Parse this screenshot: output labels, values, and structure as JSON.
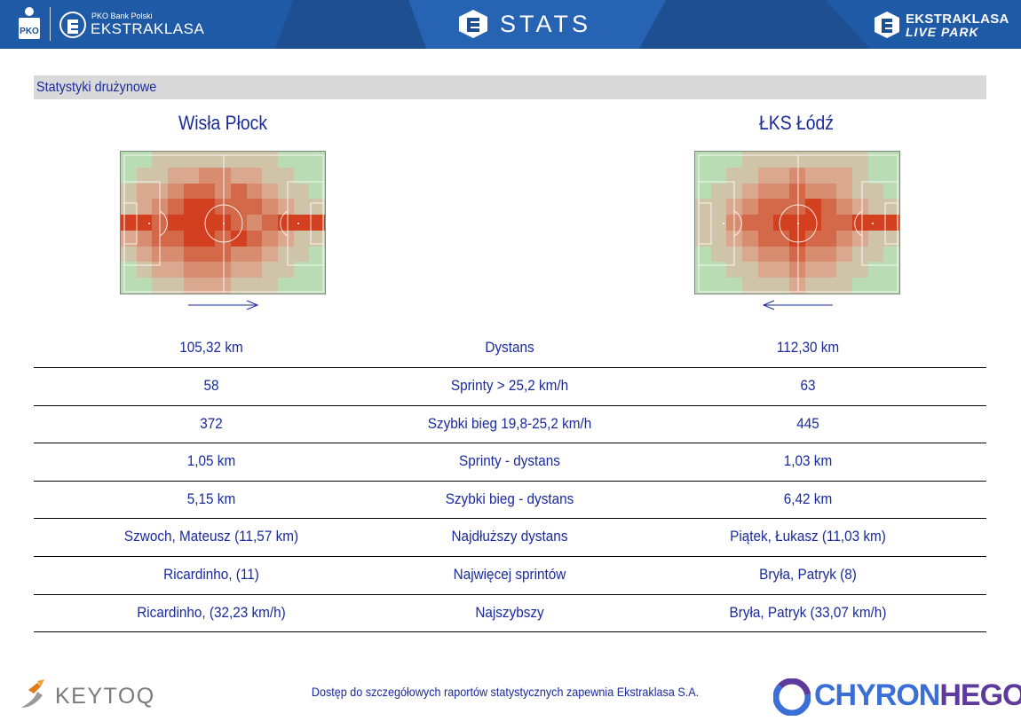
{
  "header": {
    "league_small": "PKO Bank Polski",
    "league_name": "EKSTRAKLASA",
    "stats_title": "STATS",
    "live_line1": "EKSTRAKLASA",
    "live_line2": "LIVE PARK",
    "pko_logo_text": "PKO"
  },
  "section_title": "Statystyki drużynowe",
  "teams": {
    "home": "Wisła Płock",
    "away": "ŁKS Łódź"
  },
  "heatmaps": {
    "home": {
      "attack_direction": "right",
      "grid": [
        [
          0,
          0,
          1,
          1,
          1,
          1,
          1,
          1,
          1,
          1,
          0,
          0,
          0
        ],
        [
          0,
          1,
          1,
          2,
          2,
          3,
          3,
          2,
          2,
          1,
          1,
          0,
          0
        ],
        [
          1,
          2,
          2,
          3,
          4,
          4,
          3,
          4,
          3,
          2,
          1,
          1,
          0
        ],
        [
          1,
          2,
          3,
          4,
          5,
          5,
          4,
          4,
          4,
          3,
          2,
          1,
          1
        ],
        [
          5,
          5,
          4,
          5,
          5,
          5,
          5,
          4,
          3,
          4,
          5,
          5,
          5
        ],
        [
          2,
          3,
          4,
          4,
          5,
          5,
          4,
          5,
          4,
          3,
          2,
          1,
          1
        ],
        [
          1,
          2,
          3,
          3,
          4,
          4,
          4,
          3,
          3,
          2,
          1,
          1,
          0
        ],
        [
          0,
          1,
          2,
          2,
          3,
          3,
          3,
          2,
          2,
          1,
          1,
          0,
          0
        ],
        [
          0,
          0,
          1,
          1,
          2,
          2,
          2,
          1,
          1,
          1,
          0,
          0,
          0
        ]
      ],
      "hotspot_bottom_col": 8
    },
    "away": {
      "attack_direction": "left",
      "grid": [
        [
          0,
          0,
          0,
          1,
          1,
          1,
          1,
          1,
          1,
          1,
          1,
          0,
          0
        ],
        [
          0,
          0,
          1,
          1,
          2,
          2,
          3,
          2,
          2,
          2,
          1,
          0,
          0
        ],
        [
          0,
          1,
          1,
          2,
          3,
          3,
          4,
          3,
          3,
          2,
          1,
          1,
          0
        ],
        [
          1,
          1,
          2,
          3,
          4,
          4,
          4,
          5,
          4,
          3,
          2,
          1,
          1
        ],
        [
          1,
          1,
          3,
          4,
          4,
          5,
          5,
          5,
          4,
          4,
          5,
          5,
          5
        ],
        [
          1,
          1,
          2,
          3,
          4,
          4,
          5,
          4,
          4,
          3,
          2,
          1,
          1
        ],
        [
          0,
          1,
          1,
          2,
          3,
          3,
          4,
          3,
          3,
          2,
          1,
          1,
          0
        ],
        [
          0,
          0,
          1,
          1,
          2,
          2,
          3,
          2,
          2,
          1,
          1,
          0,
          0
        ],
        [
          0,
          0,
          0,
          1,
          1,
          1,
          2,
          1,
          1,
          1,
          0,
          0,
          0
        ]
      ],
      "hotspot_bottom_col": 6
    },
    "palette": [
      "#b9dcb5",
      "#cfc4a8",
      "#d9a88e",
      "#d98d70",
      "#d4694a",
      "#d2401f"
    ]
  },
  "stats": [
    {
      "home": "105,32 km",
      "label": "Dystans",
      "away": "112,30 km"
    },
    {
      "home": "58",
      "label": "Sprinty > 25,2 km/h",
      "away": "63"
    },
    {
      "home": "372",
      "label": "Szybki bieg 19,8-25,2 km/h",
      "away": "445"
    },
    {
      "home": "1,05 km",
      "label": "Sprinty - dystans",
      "away": "1,03 km"
    },
    {
      "home": "5,15 km",
      "label": "Szybki bieg - dystans",
      "away": "6,42 km"
    },
    {
      "home": "Szwoch, Mateusz (11,57 km)",
      "label": "Najdłuższy dystans",
      "away": "Piątek, Łukasz (11,03 km)"
    },
    {
      "home": "Ricardinho,  (11)",
      "label": "Najwięcej sprintów",
      "away": "Bryła, Patryk (8)"
    },
    {
      "home": "Ricardinho,  (32,23 km/h)",
      "label": "Najszybszy",
      "away": "Bryła, Patryk (33,07 km/h)"
    }
  ],
  "footer": {
    "keytoq": "KEYTOQ",
    "note": "Dostęp do szczegółowych raportów statystycznych zapewnia Ekstraklasa S.A.",
    "chyron_a": "CHYRON",
    "chyron_b": "HEGO"
  },
  "colors": {
    "header_bg": "#1d4f91",
    "text_blue": "#1a2a9c",
    "section_bg": "#d9d9d9"
  }
}
